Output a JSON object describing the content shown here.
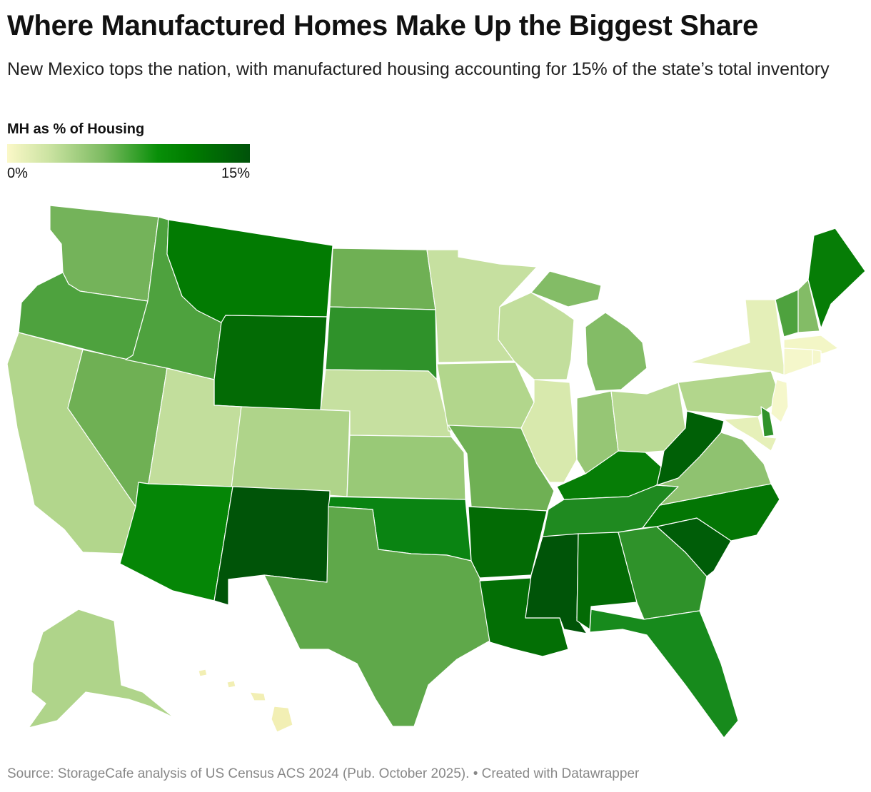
{
  "header": {
    "title": "Where Manufactured Homes Make Up the Biggest Share",
    "subtitle": "New Mexico tops the nation, with manufactured housing accounting for 15% of the state’s total inventory"
  },
  "legend": {
    "title": "MH as % of Housing",
    "min_label": "0%",
    "max_label": "15%",
    "scale_colors": [
      "#fbf8c8",
      "#c9e2a0",
      "#7bba60",
      "#088f08",
      "#007d00",
      "#00520a"
    ]
  },
  "map": {
    "region": "United States",
    "states": [
      {
        "name": "Washington",
        "color": "#74b35a"
      },
      {
        "name": "Oregon",
        "color": "#4ea23e"
      },
      {
        "name": "California",
        "color": "#b2d68c"
      },
      {
        "name": "Nevada",
        "color": "#6fb054"
      },
      {
        "name": "Idaho",
        "color": "#4ea23e"
      },
      {
        "name": "Montana",
        "color": "#027b02"
      },
      {
        "name": "Wyoming",
        "color": "#036b05"
      },
      {
        "name": "Utah",
        "color": "#c2de9c"
      },
      {
        "name": "Colorado",
        "color": "#afd48a"
      },
      {
        "name": "Arizona",
        "color": "#058606"
      },
      {
        "name": "New Mexico",
        "color": "#005408"
      },
      {
        "name": "North Dakota",
        "color": "#6fb054"
      },
      {
        "name": "South Dakota",
        "color": "#2f922a"
      },
      {
        "name": "Nebraska",
        "color": "#c6e0a0"
      },
      {
        "name": "Kansas",
        "color": "#99c977"
      },
      {
        "name": "Oklahoma",
        "color": "#0a8412"
      },
      {
        "name": "Texas",
        "color": "#5fa84a"
      },
      {
        "name": "Minnesota",
        "color": "#c6e0a0"
      },
      {
        "name": "Iowa",
        "color": "#b2d68c"
      },
      {
        "name": "Missouri",
        "color": "#6fb054"
      },
      {
        "name": "Arkansas",
        "color": "#036b05"
      },
      {
        "name": "Louisiana",
        "color": "#036f05"
      },
      {
        "name": "Wisconsin",
        "color": "#c2de9c"
      },
      {
        "name": "Illinois",
        "color": "#d8e9ad"
      },
      {
        "name": "Michigan",
        "color": "#83bc66"
      },
      {
        "name": "Indiana",
        "color": "#96c675"
      },
      {
        "name": "Ohio",
        "color": "#b9da94"
      },
      {
        "name": "Kentucky",
        "color": "#067d06"
      },
      {
        "name": "Tennessee",
        "color": "#1f8a20"
      },
      {
        "name": "Mississippi",
        "color": "#005408"
      },
      {
        "name": "Alabama",
        "color": "#036b05"
      },
      {
        "name": "Georgia",
        "color": "#2f922a"
      },
      {
        "name": "Florida",
        "color": "#178a1c"
      },
      {
        "name": "South Carolina",
        "color": "#005d08"
      },
      {
        "name": "North Carolina",
        "color": "#037604"
      },
      {
        "name": "Virginia",
        "color": "#8fc270"
      },
      {
        "name": "West Virginia",
        "color": "#006006"
      },
      {
        "name": "Pennsylvania",
        "color": "#b2d68c"
      },
      {
        "name": "New York",
        "color": "#e4efb8"
      },
      {
        "name": "Vermont",
        "color": "#4ea23e"
      },
      {
        "name": "New Hampshire",
        "color": "#83bc66"
      },
      {
        "name": "Maine",
        "color": "#067d06"
      },
      {
        "name": "Massachusetts",
        "color": "#f3f6c6"
      },
      {
        "name": "Connecticut",
        "color": "#f5f7cb"
      },
      {
        "name": "Rhode Island",
        "color": "#f5f7cb"
      },
      {
        "name": "New Jersey",
        "color": "#f5f7cb"
      },
      {
        "name": "Delaware",
        "color": "#2f922a"
      },
      {
        "name": "Maryland",
        "color": "#e6f0b9"
      },
      {
        "name": "Alaska",
        "color": "#afd48a"
      },
      {
        "name": "Hawaii",
        "color": "#f2efb4"
      }
    ]
  },
  "footer": {
    "source": "Source: StorageCafe analysis of US Census ACS 2024 (Pub. October 2025). • Created with Datawrapper"
  }
}
